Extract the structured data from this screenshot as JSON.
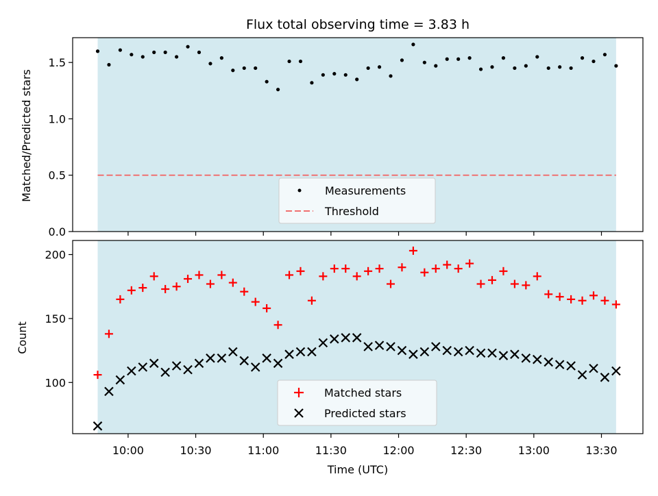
{
  "chart_data": {
    "type": "scatter",
    "title": "Flux total observing time = 3.83 h",
    "xlabel": "Time (UTC)",
    "x_unit": "minutes since 09:00 UTC",
    "x_tick_labels": [
      "10:00",
      "10:30",
      "11:00",
      "11:30",
      "12:00",
      "12:30",
      "13:00",
      "13:30"
    ],
    "x_tick_values": [
      60,
      90,
      120,
      150,
      180,
      210,
      240,
      270
    ],
    "xlim": [
      35.4,
      288.4
    ],
    "observing_window": [
      46.5,
      276.5
    ],
    "shade_color": "#d4eaf0",
    "top": {
      "ylabel": "Matched/Predicted stars",
      "ylim": [
        0,
        1.72
      ],
      "y_tick_values": [
        0,
        0.5,
        1.0,
        1.5
      ],
      "y_tick_labels": [
        "0.0",
        "0.5",
        "1.0",
        "1.5"
      ],
      "threshold": 0.5,
      "threshold_color": "#f07070",
      "legend": [
        "Measurements",
        "Threshold"
      ],
      "series": [
        {
          "name": "Measurements",
          "marker": "dot",
          "color": "#000000",
          "x": [
            46.5,
            51.5,
            56.5,
            61.5,
            66.5,
            71.5,
            76.5,
            81.5,
            86.5,
            91.5,
            96.5,
            101.5,
            106.5,
            111.5,
            116.5,
            121.5,
            126.5,
            131.5,
            136.5,
            141.5,
            146.5,
            151.5,
            156.5,
            161.5,
            166.5,
            171.5,
            176.5,
            181.5,
            186.5,
            191.5,
            196.5,
            201.5,
            206.5,
            211.5,
            216.5,
            221.5,
            226.5,
            231.5,
            236.5,
            241.5,
            246.5,
            251.5,
            256.5,
            261.5,
            266.5,
            271.5,
            276.5
          ],
          "y": [
            1.6,
            1.48,
            1.61,
            1.57,
            1.55,
            1.59,
            1.59,
            1.55,
            1.64,
            1.59,
            1.49,
            1.54,
            1.43,
            1.45,
            1.45,
            1.33,
            1.26,
            1.51,
            1.51,
            1.32,
            1.39,
            1.4,
            1.39,
            1.35,
            1.45,
            1.46,
            1.38,
            1.52,
            1.66,
            1.5,
            1.47,
            1.53,
            1.53,
            1.54,
            1.44,
            1.46,
            1.54,
            1.45,
            1.47,
            1.55,
            1.45,
            1.46,
            1.45,
            1.54,
            1.51,
            1.57,
            1.47
          ]
        }
      ]
    },
    "bottom": {
      "ylabel": "Count",
      "ylim": [
        60,
        211
      ],
      "y_tick_values": [
        100,
        150,
        200
      ],
      "y_tick_labels": [
        "100",
        "150",
        "200"
      ],
      "legend": [
        "Matched stars",
        "Predicted stars"
      ],
      "series": [
        {
          "name": "Matched stars",
          "marker": "plus",
          "color": "#ff0000",
          "x": [
            46.5,
            51.5,
            56.5,
            61.5,
            66.5,
            71.5,
            76.5,
            81.5,
            86.5,
            91.5,
            96.5,
            101.5,
            106.5,
            111.5,
            116.5,
            121.5,
            126.5,
            131.5,
            136.5,
            141.5,
            146.5,
            151.5,
            156.5,
            161.5,
            166.5,
            171.5,
            176.5,
            181.5,
            186.5,
            191.5,
            196.5,
            201.5,
            206.5,
            211.5,
            216.5,
            221.5,
            226.5,
            231.5,
            236.5,
            241.5,
            246.5,
            251.5,
            256.5,
            261.5,
            266.5,
            271.5,
            276.5
          ],
          "y": [
            106,
            138,
            165,
            172,
            174,
            183,
            173,
            175,
            181,
            184,
            177,
            184,
            178,
            171,
            163,
            158,
            145,
            184,
            187,
            164,
            183,
            189,
            189,
            183,
            187,
            189,
            177,
            190,
            203,
            186,
            189,
            192,
            189,
            193,
            177,
            180,
            187,
            177,
            176,
            183,
            169,
            167,
            165,
            164,
            168,
            164,
            161
          ]
        },
        {
          "name": "Predicted stars",
          "marker": "x",
          "color": "#000000",
          "x": [
            46.5,
            51.5,
            56.5,
            61.5,
            66.5,
            71.5,
            76.5,
            81.5,
            86.5,
            91.5,
            96.5,
            101.5,
            106.5,
            111.5,
            116.5,
            121.5,
            126.5,
            131.5,
            136.5,
            141.5,
            146.5,
            151.5,
            156.5,
            161.5,
            166.5,
            171.5,
            176.5,
            181.5,
            186.5,
            191.5,
            196.5,
            201.5,
            206.5,
            211.5,
            216.5,
            221.5,
            226.5,
            231.5,
            236.5,
            241.5,
            246.5,
            251.5,
            256.5,
            261.5,
            266.5,
            271.5,
            276.5
          ],
          "y": [
            66,
            93,
            102,
            109,
            112,
            115,
            108,
            113,
            110,
            115,
            119,
            119,
            124,
            117,
            112,
            119,
            115,
            122,
            124,
            124,
            131,
            134,
            135,
            135,
            128,
            129,
            128,
            125,
            122,
            124,
            128,
            125,
            124,
            125,
            123,
            123,
            121,
            122,
            119,
            118,
            116,
            114,
            113,
            106,
            111,
            104,
            109
          ]
        }
      ]
    }
  }
}
